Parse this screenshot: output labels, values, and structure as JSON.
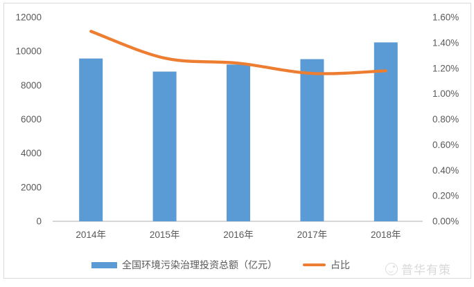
{
  "chart_data": {
    "type": "combo",
    "title": "",
    "categories": [
      "2014年",
      "2015年",
      "2016年",
      "2017年",
      "2018年"
    ],
    "series": [
      {
        "name": "全国环境污染治理投资总额（亿元）",
        "type": "bar",
        "axis": "left",
        "color": "#5B9BD5",
        "values": [
          9575,
          8806,
          9220,
          9539,
          10523
        ]
      },
      {
        "name": "占比",
        "type": "line",
        "axis": "right",
        "color": "#ED7D31",
        "smooth": true,
        "values": [
          1.49,
          1.28,
          1.24,
          1.16,
          1.18
        ]
      }
    ],
    "left_axis": {
      "min": 0,
      "max": 12000,
      "step": 2000,
      "ticks": [
        "0",
        "2000",
        "4000",
        "6000",
        "8000",
        "10000",
        "12000"
      ]
    },
    "right_axis": {
      "min": 0,
      "max": 1.6,
      "step": 0.2,
      "ticks": [
        "0.00%",
        "0.20%",
        "0.40%",
        "0.60%",
        "0.80%",
        "1.00%",
        "1.20%",
        "1.40%",
        "1.60%"
      ]
    },
    "grid": false,
    "legend_position": "bottom"
  },
  "legend": {
    "bar_label": "全国环境污染治理投资总额（亿元）",
    "line_label": "占比"
  },
  "watermark": {
    "text": "普华有策",
    "icon": "smiley-logo-icon"
  },
  "colors": {
    "bar": "#5B9BD5",
    "line": "#ED7D31",
    "axis_text": "#595959",
    "axis_line": "#bfbfbf",
    "border": "#d9d9d9",
    "watermark": "#d8d8d8"
  }
}
